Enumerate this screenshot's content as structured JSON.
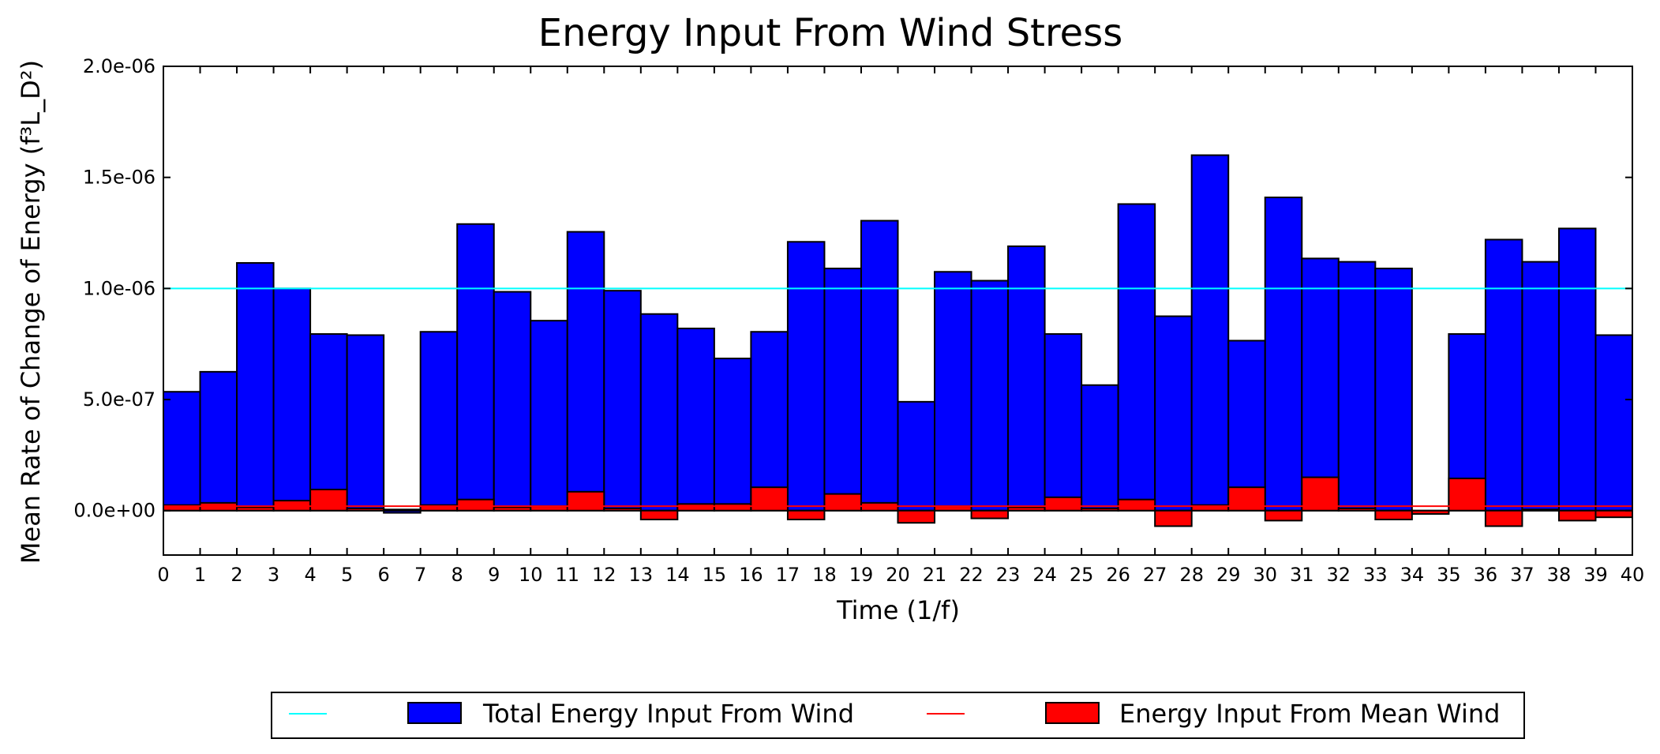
{
  "chart_data": {
    "type": "bar",
    "title": "Energy Input From Wind Stress",
    "xlabel": "Time (1/f)",
    "ylabel": "Mean Rate of Change of Energy (f³L_D²)",
    "xlim": [
      0,
      40
    ],
    "ylim": [
      -2e-07,
      2e-06
    ],
    "yticks": [
      {
        "value": 2e-06,
        "label": "2.0e-06"
      },
      {
        "value": 1.5e-06,
        "label": "1.5e-06"
      },
      {
        "value": 1e-06,
        "label": "1.0e-06"
      },
      {
        "value": 5e-07,
        "label": "5.0e-07"
      },
      {
        "value": 0.0,
        "label": "0.0e+00"
      }
    ],
    "xticks": [
      "0",
      "1",
      "2",
      "3",
      "4",
      "5",
      "6",
      "7",
      "8",
      "9",
      "10",
      "11",
      "12",
      "13",
      "14",
      "15",
      "16",
      "17",
      "18",
      "19",
      "20",
      "21",
      "22",
      "23",
      "24",
      "25",
      "26",
      "27",
      "28",
      "29",
      "30",
      "31",
      "32",
      "33",
      "34",
      "35",
      "36",
      "37",
      "38",
      "39",
      "40"
    ],
    "grid": false,
    "legend_position": "bottom",
    "series": [
      {
        "name": "Total Energy Input From Wind",
        "color": "#0000ff",
        "bar_edges": [
          0,
          1,
          2,
          3,
          4,
          5,
          6,
          7,
          8,
          9,
          10,
          11,
          12,
          13,
          14,
          15,
          16,
          17,
          18,
          19,
          20,
          21,
          22,
          23,
          24,
          25,
          26,
          27,
          28,
          29,
          30,
          31,
          32,
          33,
          34,
          35,
          36,
          37,
          38,
          39,
          40
        ],
        "values": [
          5.35e-07,
          6.25e-07,
          1.115e-06,
          1e-06,
          7.95e-07,
          7.9e-07,
          -1e-08,
          8.05e-07,
          1.29e-06,
          9.85e-07,
          8.55e-07,
          1.255e-06,
          9.9e-07,
          8.85e-07,
          8.2e-07,
          6.85e-07,
          8.05e-07,
          1.21e-06,
          1.09e-06,
          1.305e-06,
          4.9e-07,
          1.075e-06,
          1.035e-06,
          1.19e-06,
          7.95e-07,
          5.65e-07,
          1.38e-06,
          8.75e-07,
          1.6e-06,
          7.65e-07,
          1.41e-06,
          1.135e-06,
          1.12e-06,
          1.09e-06,
          -1e-08,
          7.95e-07,
          1.22e-06,
          1.12e-06,
          1.27e-06,
          7.9e-07
        ]
      },
      {
        "name": "Energy Input From Mean Wind",
        "color": "#ff0000",
        "bar_edges": [
          0,
          1,
          2,
          3,
          4,
          5,
          6,
          7,
          8,
          9,
          10,
          11,
          12,
          13,
          14,
          15,
          16,
          17,
          18,
          19,
          20,
          21,
          22,
          23,
          24,
          25,
          26,
          27,
          28,
          29,
          30,
          31,
          32,
          33,
          34,
          35,
          36,
          37,
          38,
          39,
          40
        ],
        "values": [
          2.5e-08,
          3.5e-08,
          1.5e-08,
          4.5e-08,
          9.5e-08,
          1e-08,
          5e-09,
          2.5e-08,
          5e-08,
          1.5e-08,
          2e-08,
          8.5e-08,
          1e-08,
          -4e-08,
          3e-08,
          3e-08,
          1.05e-07,
          -4e-08,
          7.5e-08,
          3.5e-08,
          -5.5e-08,
          2e-08,
          -3.5e-08,
          1.5e-08,
          6e-08,
          1e-08,
          5e-08,
          -7e-08,
          2.5e-08,
          1.05e-07,
          -4.5e-08,
          1.5e-07,
          1e-08,
          -4e-08,
          -1.5e-08,
          1.45e-07,
          -7e-08,
          5e-09,
          -4.5e-08,
          -3e-08
        ]
      }
    ],
    "mean_lines": [
      {
        "series": "Total Energy Input From Wind",
        "value": 1e-06,
        "color": "#00ffff"
      },
      {
        "series": "Energy Input From Mean Wind",
        "value": 2e-08,
        "color": "#ff0000"
      }
    ]
  }
}
